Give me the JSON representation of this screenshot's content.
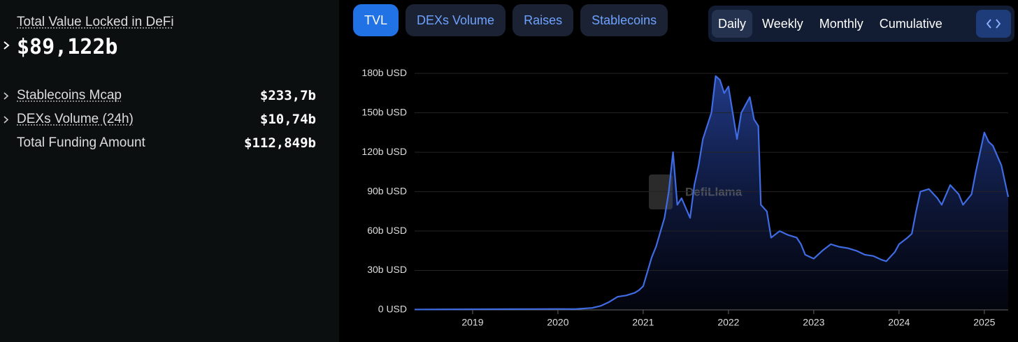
{
  "header": {
    "title": "Total Value Locked in DeFi",
    "value": "$89,122b"
  },
  "stats": [
    {
      "label": "Stablecoins Mcap",
      "value": "$233,7b"
    },
    {
      "label": "DEXs Volume (24h)",
      "value": "$10,74b"
    },
    {
      "label": "Total Funding Amount",
      "value": "$112,849b"
    }
  ],
  "tabs": [
    "TVL",
    "DEXs Volume",
    "Raises",
    "Stablecoins"
  ],
  "periods": [
    "Daily",
    "Weekly",
    "Monthly",
    "Cumulative"
  ],
  "chart_data": {
    "type": "area",
    "watermark": "DefiLlama",
    "color": "#3f6be3",
    "grid": true,
    "xlim": [
      2018.32,
      2025.28
    ],
    "xticks": [
      2019,
      2020,
      2021,
      2022,
      2023,
      2024,
      2025
    ],
    "ylim": [
      0,
      187
    ],
    "yticks": [
      {
        "value": 0,
        "label": "0 USD"
      },
      {
        "value": 30,
        "label": "30b USD"
      },
      {
        "value": 60,
        "label": "60b USD"
      },
      {
        "value": 90,
        "label": "90b USD"
      },
      {
        "value": 120,
        "label": "120b USD"
      },
      {
        "value": 150,
        "label": "150b USD"
      },
      {
        "value": 180,
        "label": "180b USD"
      }
    ],
    "x": [
      2018.32,
      2019,
      2019.5,
      2020,
      2020.2,
      2020.4,
      2020.5,
      2020.6,
      2020.7,
      2020.8,
      2020.9,
      2020.95,
      2021.0,
      2021.1,
      2021.15,
      2021.25,
      2021.3,
      2021.35,
      2021.4,
      2021.45,
      2021.55,
      2021.6,
      2021.65,
      2021.7,
      2021.75,
      2021.8,
      2021.85,
      2021.9,
      2021.95,
      2022.0,
      2022.05,
      2022.1,
      2022.15,
      2022.25,
      2022.3,
      2022.35,
      2022.38,
      2022.45,
      2022.5,
      2022.6,
      2022.7,
      2022.8,
      2022.85,
      2022.9,
      2023.0,
      2023.1,
      2023.2,
      2023.3,
      2023.4,
      2023.5,
      2023.6,
      2023.7,
      2023.8,
      2023.85,
      2023.95,
      2024.0,
      2024.1,
      2024.15,
      2024.2,
      2024.25,
      2024.35,
      2024.45,
      2024.5,
      2024.6,
      2024.7,
      2024.75,
      2024.85,
      2024.9,
      2025.0,
      2025.05,
      2025.1,
      2025.2,
      2025.25,
      2025.28
    ],
    "values": [
      0.3,
      0.5,
      0.6,
      0.7,
      0.6,
      1.5,
      3,
      6,
      10,
      11,
      13,
      15,
      18,
      40,
      48,
      70,
      90,
      120,
      80,
      85,
      70,
      95,
      110,
      130,
      140,
      150,
      178,
      175,
      165,
      170,
      150,
      130,
      150,
      162,
      145,
      140,
      80,
      75,
      55,
      60,
      57,
      55,
      50,
      42,
      39,
      45,
      50,
      48,
      47,
      45,
      42,
      41,
      38,
      37,
      44,
      50,
      55,
      58,
      75,
      90,
      92,
      85,
      80,
      95,
      88,
      80,
      88,
      105,
      135,
      128,
      125,
      110,
      95,
      86
    ]
  }
}
